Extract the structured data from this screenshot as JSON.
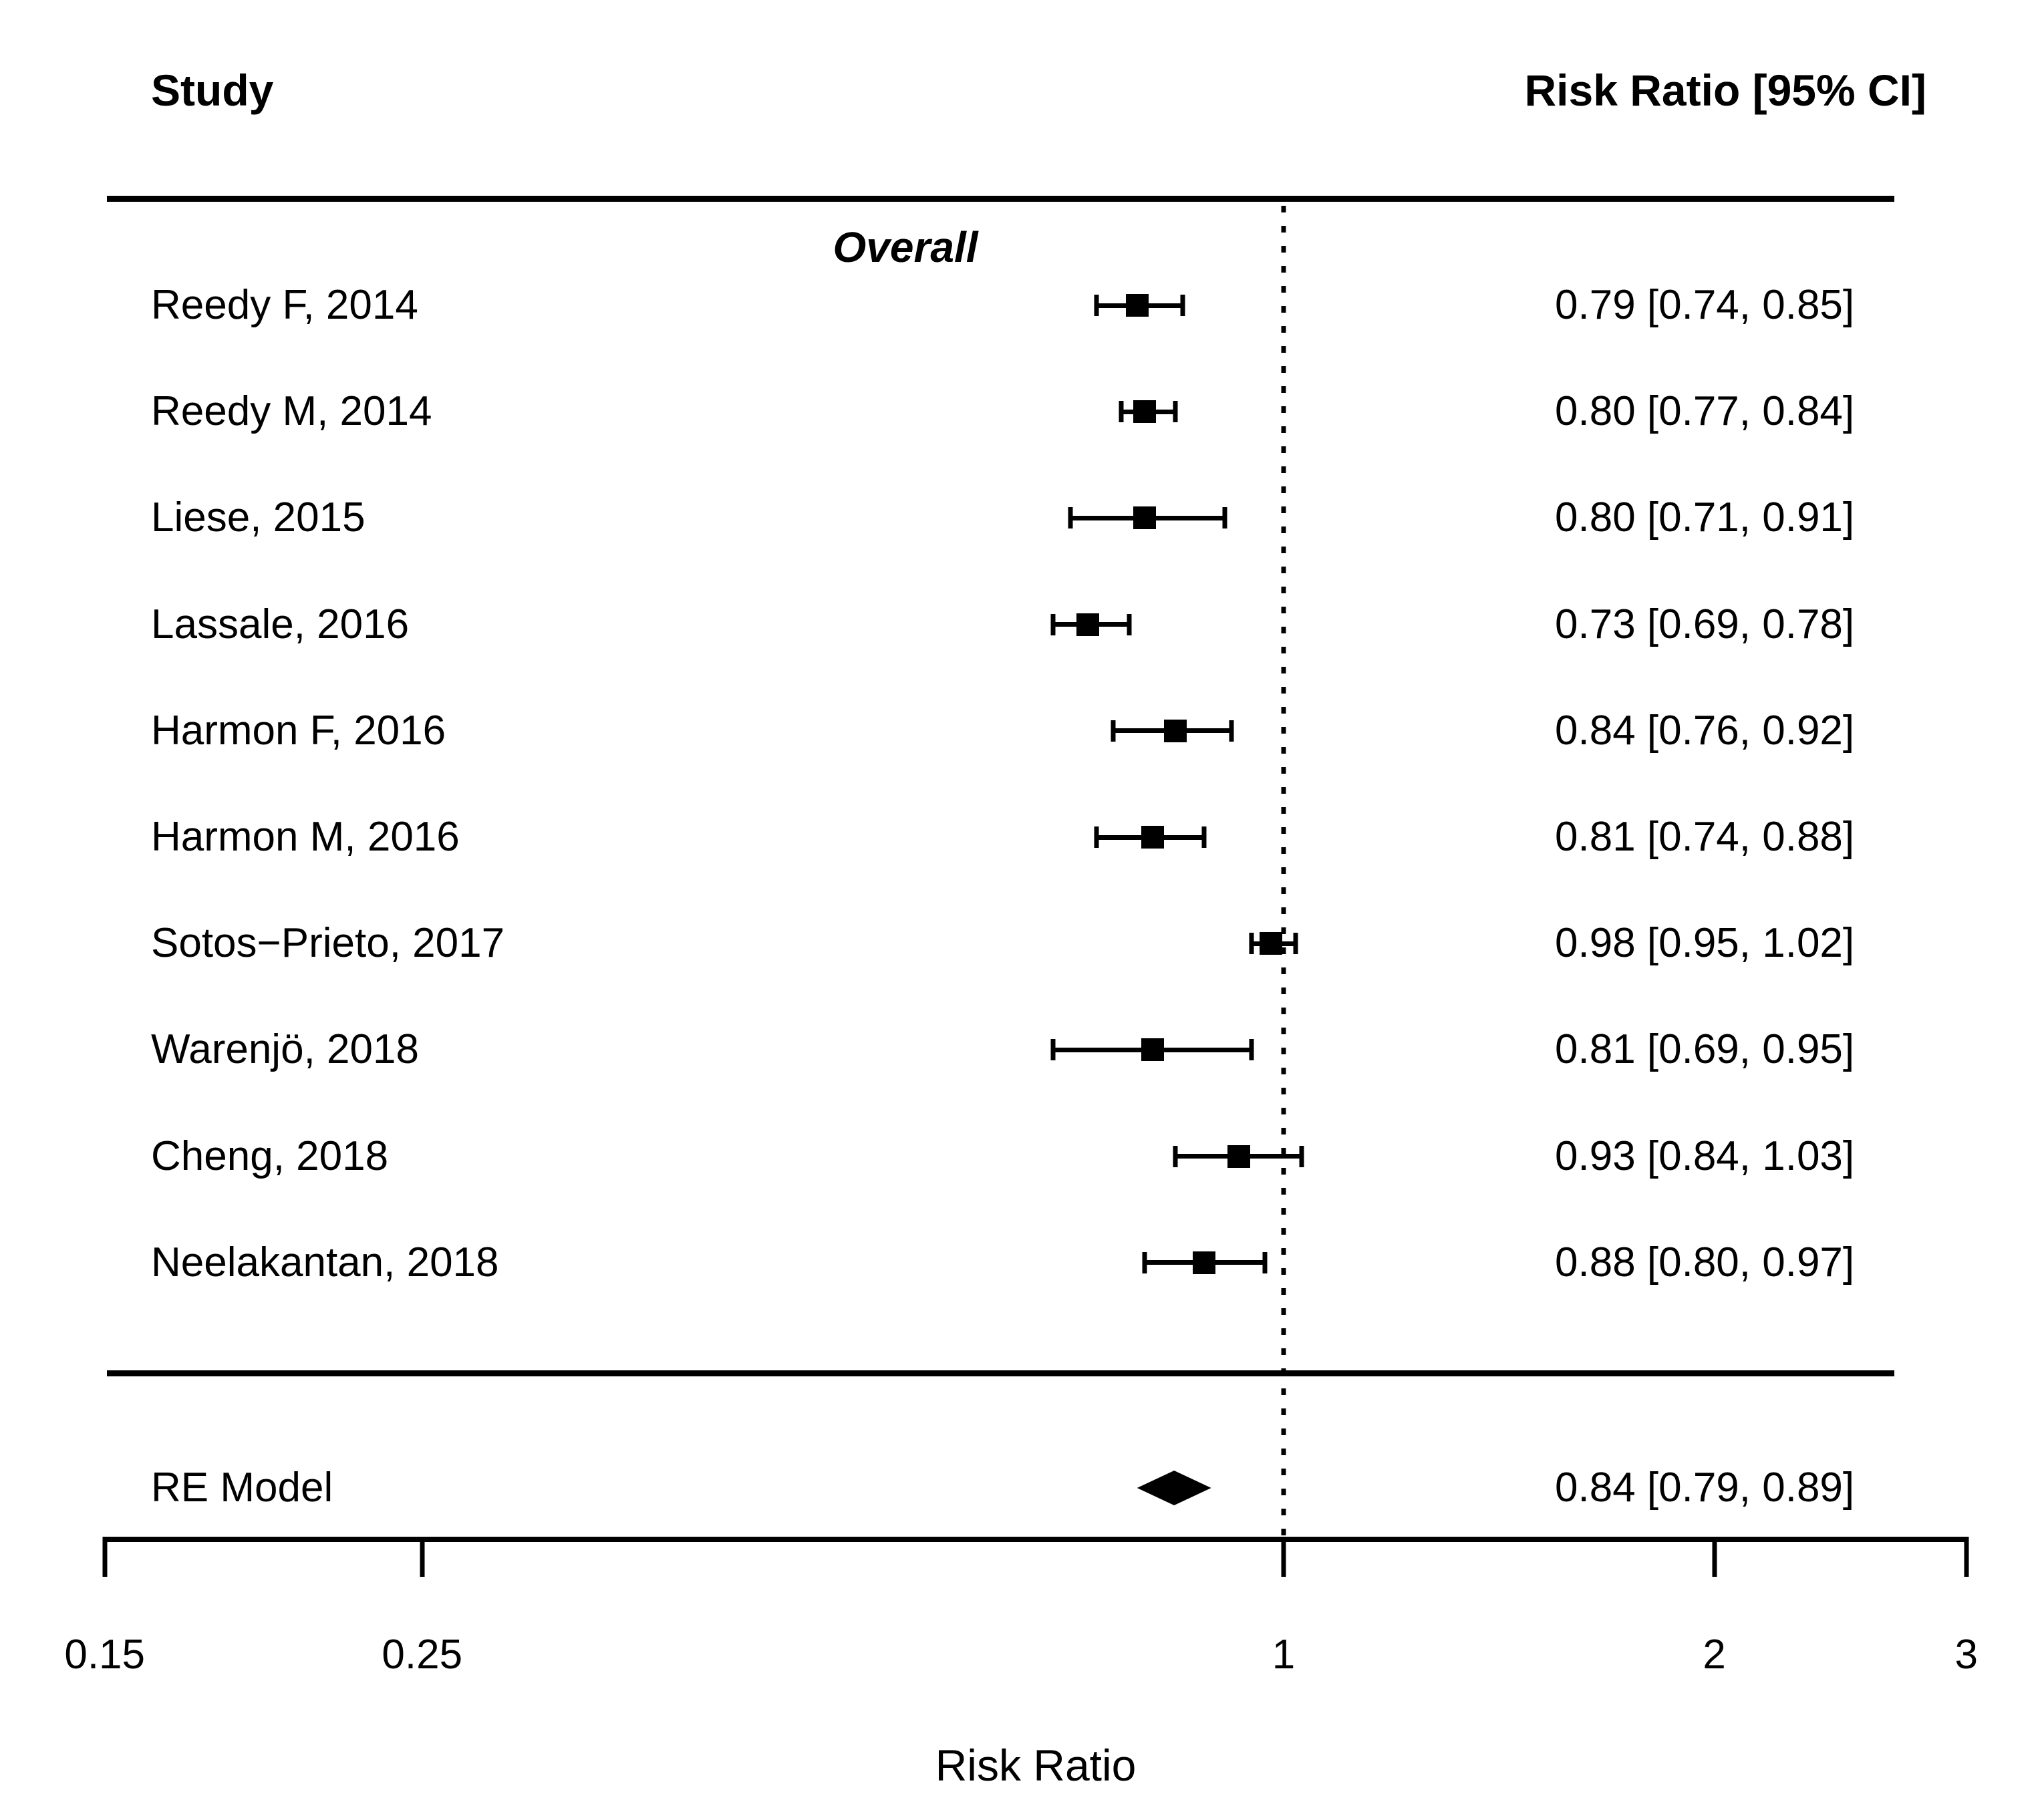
{
  "header": {
    "left": "Study",
    "right": "Risk Ratio [95% CI]"
  },
  "group_label": "Overall",
  "colors": {
    "foreground": "#000000",
    "background": "#ffffff"
  },
  "chart_data": {
    "type": "forest",
    "x_scale": "log",
    "xlim": [
      0.15,
      3
    ],
    "reference_line": 1,
    "x_ticks": [
      0.15,
      0.25,
      1,
      2,
      3
    ],
    "x_tick_labels": [
      "0.15",
      "0.25",
      "1",
      "2",
      "3"
    ],
    "xlabel": "Risk Ratio",
    "legend_position": "none",
    "grid": false,
    "studies": [
      {
        "label": "Reedy F, 2014",
        "rr": 0.79,
        "ci_low": 0.74,
        "ci_high": 0.85,
        "estimate_text": "0.79 [0.74, 0.85]"
      },
      {
        "label": "Reedy M, 2014",
        "rr": 0.8,
        "ci_low": 0.77,
        "ci_high": 0.84,
        "estimate_text": "0.80 [0.77, 0.84]"
      },
      {
        "label": "Liese, 2015",
        "rr": 0.8,
        "ci_low": 0.71,
        "ci_high": 0.91,
        "estimate_text": "0.80 [0.71, 0.91]"
      },
      {
        "label": "Lassale, 2016",
        "rr": 0.73,
        "ci_low": 0.69,
        "ci_high": 0.78,
        "estimate_text": "0.73 [0.69, 0.78]"
      },
      {
        "label": "Harmon F, 2016",
        "rr": 0.84,
        "ci_low": 0.76,
        "ci_high": 0.92,
        "estimate_text": "0.84 [0.76, 0.92]"
      },
      {
        "label": "Harmon M, 2016",
        "rr": 0.81,
        "ci_low": 0.74,
        "ci_high": 0.88,
        "estimate_text": "0.81 [0.74, 0.88]"
      },
      {
        "label": "Sotos−Prieto, 2017",
        "rr": 0.98,
        "ci_low": 0.95,
        "ci_high": 1.02,
        "estimate_text": "0.98 [0.95, 1.02]"
      },
      {
        "label": "Warenjö, 2018",
        "rr": 0.81,
        "ci_low": 0.69,
        "ci_high": 0.95,
        "estimate_text": "0.81 [0.69, 0.95]"
      },
      {
        "label": "Cheng, 2018",
        "rr": 0.93,
        "ci_low": 0.84,
        "ci_high": 1.03,
        "estimate_text": "0.93 [0.84, 1.03]"
      },
      {
        "label": "Neelakantan, 2018",
        "rr": 0.88,
        "ci_low": 0.8,
        "ci_high": 0.97,
        "estimate_text": "0.88 [0.80, 0.97]"
      }
    ],
    "summary": {
      "label": "RE Model",
      "rr": 0.84,
      "ci_low": 0.79,
      "ci_high": 0.89,
      "estimate_text": "0.84 [0.79, 0.89]"
    }
  }
}
